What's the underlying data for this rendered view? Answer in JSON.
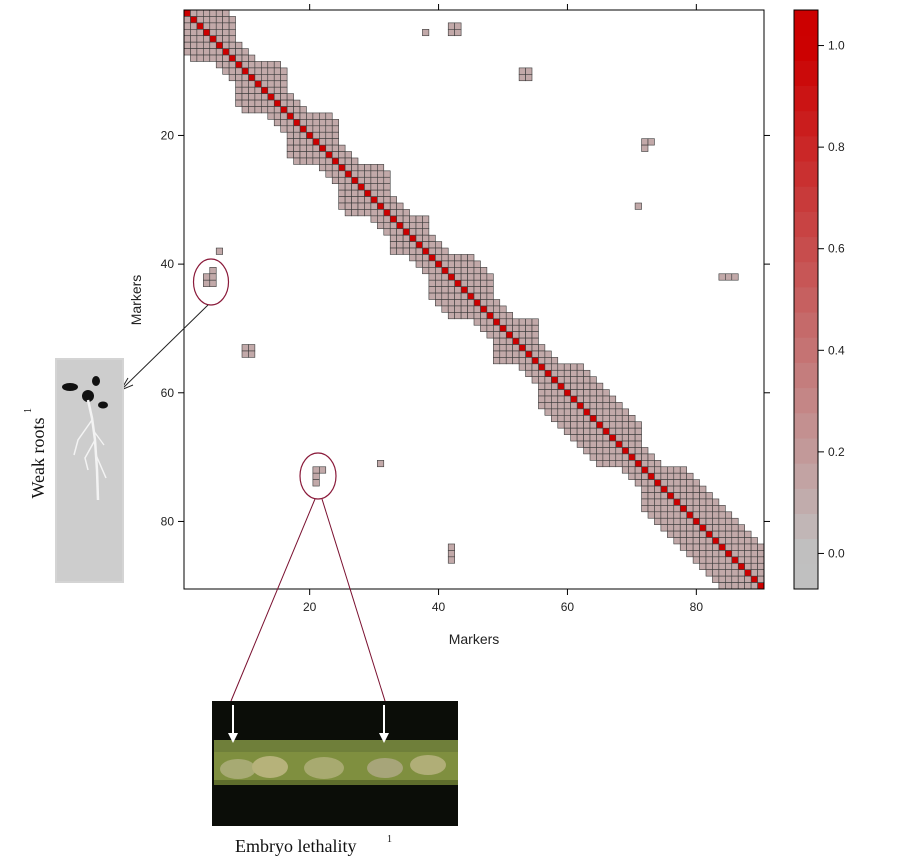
{
  "chart_data": {
    "type": "heatmap",
    "title": "",
    "xlabel": "Markers",
    "ylabel": "Markers",
    "n_markers": 90,
    "xticks": [
      20,
      40,
      60,
      80
    ],
    "yticks": [
      20,
      40,
      60,
      80
    ],
    "colorbar": {
      "ticks": [
        0.0,
        0.2,
        0.4,
        0.6,
        0.8,
        1.0
      ],
      "tick_labels": [
        "0.0",
        "0.2",
        "0.4",
        "0.6",
        "0.8",
        "1.0"
      ],
      "range": [
        -0.07,
        1.07
      ],
      "low_color": "#c0c0c0",
      "high_color": "#cc0000"
    },
    "diagonal_value": 1.0,
    "cell_value": 0.1,
    "band_width": 3,
    "blocks": [
      [
        1,
        8
      ],
      [
        9,
        16
      ],
      [
        17,
        24
      ],
      [
        25,
        32
      ],
      [
        33,
        38
      ],
      [
        39,
        48
      ],
      [
        49,
        55
      ],
      [
        56,
        71
      ],
      [
        72,
        90
      ]
    ],
    "offdiag_cells": [
      [
        38,
        4
      ],
      [
        42,
        3
      ],
      [
        43,
        3
      ],
      [
        42,
        4
      ],
      [
        43,
        4
      ],
      [
        53,
        10
      ],
      [
        54,
        10
      ],
      [
        53,
        11
      ],
      [
        54,
        11
      ],
      [
        72,
        21
      ],
      [
        73,
        21
      ],
      [
        72,
        22
      ],
      [
        71,
        31
      ],
      [
        6,
        38
      ],
      [
        5,
        41
      ],
      [
        4,
        42
      ],
      [
        5,
        42
      ],
      [
        4,
        43
      ],
      [
        5,
        43
      ],
      [
        84,
        42
      ],
      [
        85,
        42
      ],
      [
        86,
        42
      ],
      [
        10,
        53
      ],
      [
        11,
        53
      ],
      [
        10,
        54
      ],
      [
        11,
        54
      ],
      [
        31,
        71
      ],
      [
        21,
        72
      ],
      [
        22,
        72
      ],
      [
        21,
        73
      ],
      [
        21,
        74
      ],
      [
        42,
        84
      ],
      [
        42,
        85
      ],
      [
        42,
        86
      ]
    ],
    "annotations": {
      "weak_roots": {
        "text": "Weak roots",
        "superscript": "1"
      },
      "embryo_lethality": {
        "text": "Embryo lethality",
        "superscript": "1"
      }
    }
  }
}
